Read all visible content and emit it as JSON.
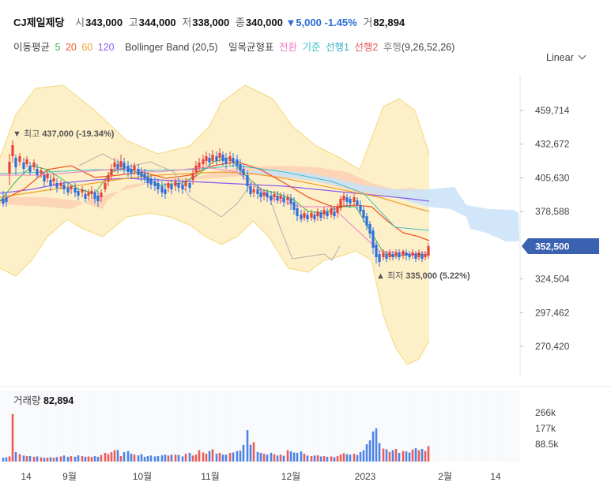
{
  "header": {
    "name": "CJ제일제당",
    "open_label": "시",
    "open": "343,000",
    "high_label": "고",
    "high": "344,000",
    "low_label": "저",
    "low": "338,000",
    "close_label": "종",
    "close": "340,000",
    "change": "▼5,000",
    "change_pct": "-1.45%",
    "volume_label": "거",
    "volume": "82,894"
  },
  "indicators": {
    "ma_label": "이동평균",
    "ma": [
      {
        "text": "5",
        "color": "#3cb34a"
      },
      {
        "text": "20",
        "color": "#f05a28"
      },
      {
        "text": "60",
        "color": "#f0a030"
      },
      {
        "text": "120",
        "color": "#8a5cf0"
      }
    ],
    "bollinger": "Bollinger Band (20,5)",
    "ichimoku_label": "일목균형표",
    "ichimoku": [
      {
        "text": "전환",
        "color": "#f07cc8"
      },
      {
        "text": "기준",
        "color": "#3cc0c8"
      },
      {
        "text": "선행1",
        "color": "#3cb0c8"
      },
      {
        "text": "선행2",
        "color": "#e05a5a"
      },
      {
        "text": "후행",
        "color": "#888888"
      }
    ],
    "ichimoku_params": "(9,26,52,26)"
  },
  "scale_toggle": "Linear",
  "chart_data": {
    "type": "candlestick",
    "y_ticks": [
      "459,714",
      "432,672",
      "405,630",
      "378,588",
      "324,504",
      "297,462",
      "270,420"
    ],
    "y_tick_values": [
      459714,
      432672,
      405630,
      378588,
      324504,
      297462,
      270420
    ],
    "current_price": "352,500",
    "current_price_value": 352500,
    "high_marker": {
      "label": "최고",
      "price": "437,000",
      "pct": "(-19.34%)"
    },
    "low_marker": {
      "label": "최저",
      "price": "335,000",
      "pct": "(5.22%)"
    },
    "x_labels": [
      "14",
      "9월",
      "10월",
      "11월",
      "12월",
      "2023",
      "2월",
      "14"
    ],
    "volume": {
      "title": "거래량",
      "value": "82,894",
      "ticks": [
        "266k",
        "177k",
        "88.5k"
      ],
      "tick_values": [
        266000,
        177000,
        88500
      ]
    },
    "colors": {
      "up": "#e8413c",
      "down": "#2f6fe0",
      "cloud_bull": "#f9c0a8",
      "cloud_bear": "#c9e2f8",
      "band": "#fdf0c8"
    }
  }
}
